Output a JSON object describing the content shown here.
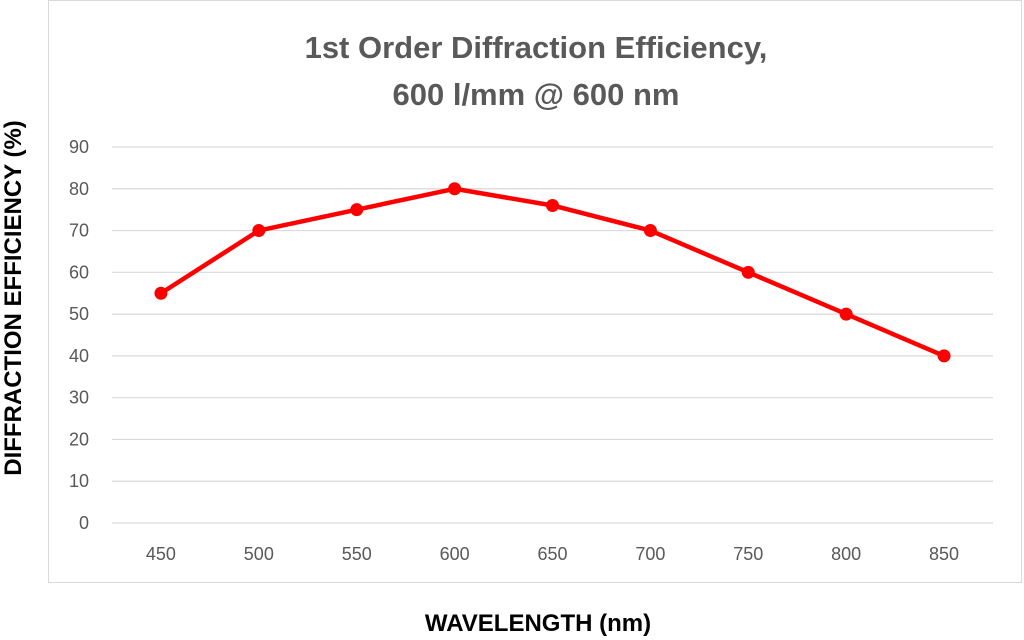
{
  "chart_data": {
    "type": "line",
    "title_lines": [
      "1st Order Diffraction Efficiency,",
      "600 l/mm @ 600 nm"
    ],
    "xlabel": "WAVELENGTH (nm)",
    "ylabel": "DIFFRACTION EFFICIENCY (%)",
    "categories": [
      "450",
      "500",
      "550",
      "600",
      "650",
      "700",
      "750",
      "800",
      "850"
    ],
    "series": [
      {
        "name": "1st Order Diffraction Efficiency",
        "values": [
          55,
          70,
          75,
          80,
          76,
          70,
          60,
          50,
          40
        ],
        "color": "#ff0000"
      }
    ],
    "ylim": [
      0,
      90
    ],
    "yticks": [
      "0",
      "10",
      "20",
      "30",
      "40",
      "50",
      "60",
      "70",
      "80",
      "90"
    ],
    "grid": true,
    "legend": "none"
  },
  "colors": {
    "line": "#ff0000",
    "grid": "#d9d9d9",
    "text": "#595959"
  }
}
